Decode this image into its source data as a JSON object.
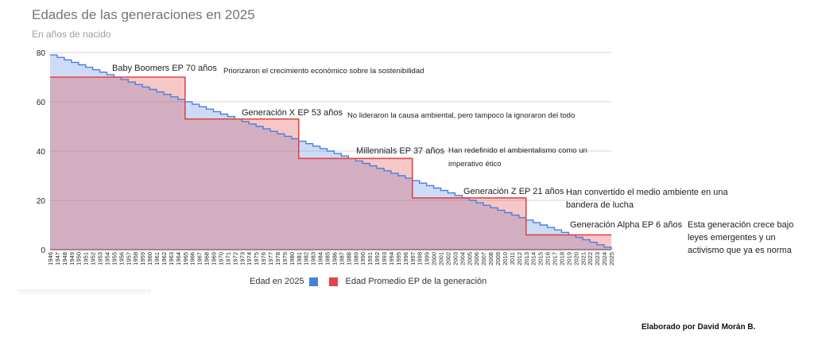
{
  "chart_data": {
    "type": "area",
    "title": "Edades de las generaciones en 2025",
    "subtitle": "En años de nacido",
    "x": [
      1946,
      1947,
      1948,
      1949,
      1950,
      1951,
      1952,
      1953,
      1954,
      1955,
      1956,
      1957,
      1958,
      1959,
      1960,
      1961,
      1962,
      1963,
      1964,
      1965,
      1966,
      1967,
      1968,
      1969,
      1970,
      1971,
      1972,
      1973,
      1974,
      1975,
      1976,
      1977,
      1978,
      1979,
      1980,
      1981,
      1982,
      1983,
      1984,
      1985,
      1986,
      1987,
      1988,
      1989,
      1990,
      1991,
      1992,
      1993,
      1994,
      1995,
      1996,
      1997,
      1998,
      1999,
      2000,
      2001,
      2002,
      2003,
      2004,
      2005,
      2006,
      2007,
      2008,
      2009,
      2010,
      2011,
      2012,
      2013,
      2014,
      2015,
      2016,
      2017,
      2018,
      2019,
      2020,
      2021,
      2022,
      2023,
      2024,
      2025
    ],
    "ylim": [
      0,
      80
    ],
    "yticks": [
      0,
      20,
      40,
      60,
      80
    ],
    "series": [
      {
        "name": "Edad en 2025",
        "color": "#4a7fe0",
        "values": [
          79,
          78,
          77,
          76,
          75,
          74,
          73,
          72,
          71,
          70,
          69,
          68,
          67,
          66,
          65,
          64,
          63,
          62,
          61,
          60,
          59,
          58,
          57,
          56,
          55,
          54,
          53,
          52,
          51,
          50,
          49,
          48,
          47,
          46,
          45,
          44,
          43,
          42,
          41,
          40,
          39,
          38,
          37,
          36,
          35,
          34,
          33,
          32,
          31,
          30,
          29,
          28,
          27,
          26,
          25,
          24,
          23,
          22,
          21,
          20,
          19,
          18,
          17,
          16,
          15,
          14,
          13,
          12,
          11,
          10,
          9,
          8,
          7,
          6,
          5,
          4,
          3,
          2,
          1,
          0
        ]
      },
      {
        "name": "Edad Promedio EP de la generación",
        "color": "#e04646",
        "values": [
          70,
          70,
          70,
          70,
          70,
          70,
          70,
          70,
          70,
          70,
          70,
          70,
          70,
          70,
          70,
          70,
          70,
          70,
          70,
          53,
          53,
          53,
          53,
          53,
          53,
          53,
          53,
          53,
          53,
          53,
          53,
          53,
          53,
          53,
          53,
          37,
          37,
          37,
          37,
          37,
          37,
          37,
          37,
          37,
          37,
          37,
          37,
          37,
          37,
          37,
          37,
          21,
          21,
          21,
          21,
          21,
          21,
          21,
          21,
          21,
          21,
          21,
          21,
          21,
          21,
          21,
          21,
          6,
          6,
          6,
          6,
          6,
          6,
          6,
          6,
          6,
          6,
          6,
          6,
          6
        ]
      }
    ],
    "annotations": [
      {
        "label": "Baby Boomers EP 70 años",
        "text": "Priorizaron el crecimiento económico sobre la sostenibilidad"
      },
      {
        "label": "Generación X EP 53 años",
        "text": "No lideraron la causa ambiental, pero tampoco la ignoraron del todo"
      },
      {
        "label": "Millennials EP 37 años",
        "text": "Han redefinido el ambientalismo como un imperativo ético"
      },
      {
        "label": "Generación Z EP 21 años",
        "text": "Han convertido el medio ambiente en una bandera de lucha"
      },
      {
        "label": "Generación Alpha EP 6 años",
        "text": "Esta generación crece bajo leyes emergentes y un activismo que ya es norma"
      }
    ],
    "legend_position": "bottom",
    "grid": true
  },
  "credit": "Elaborado por David Morán B."
}
